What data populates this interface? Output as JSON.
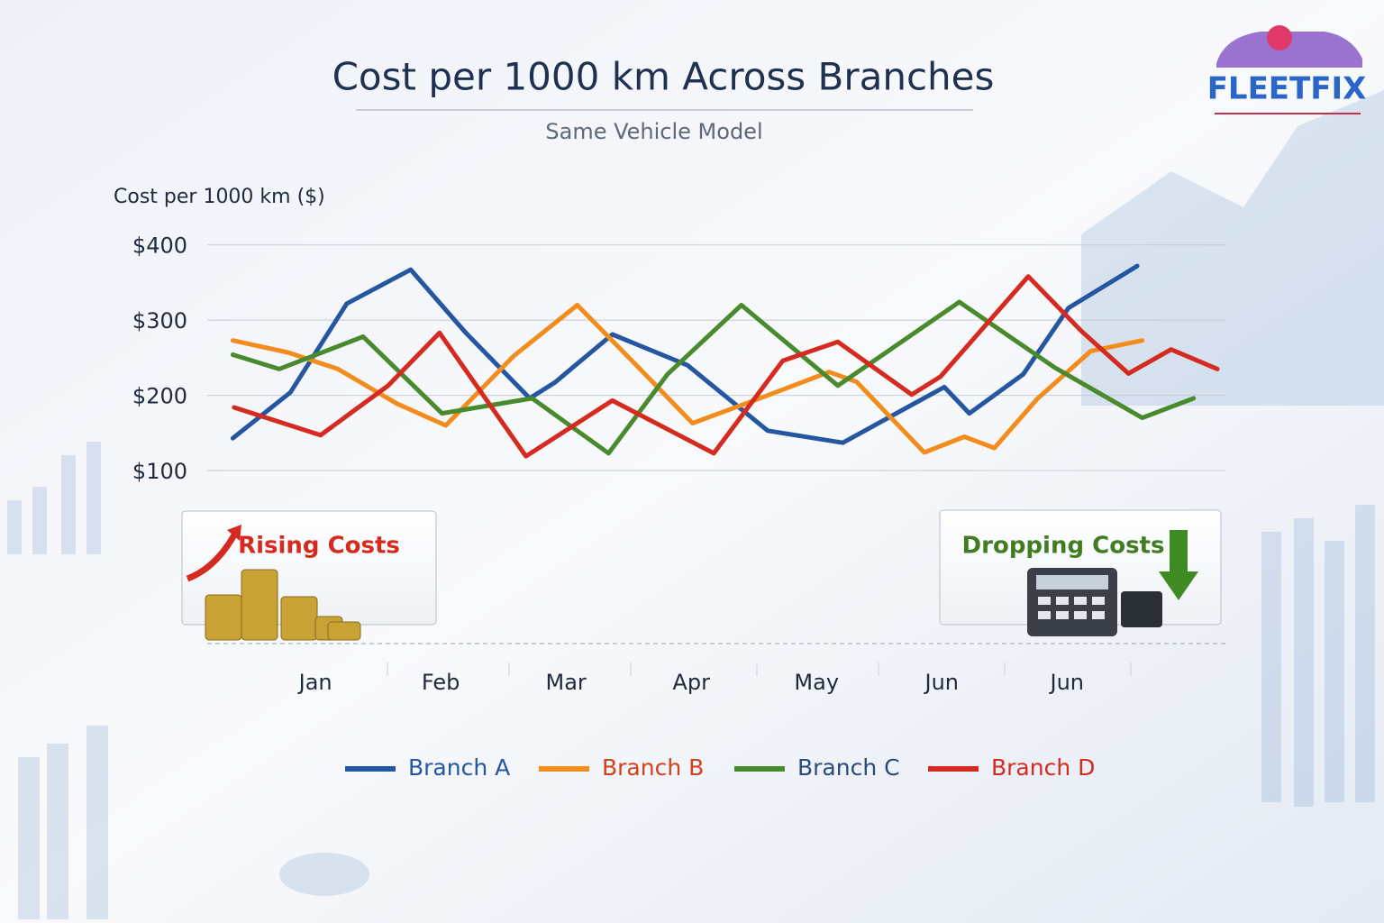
{
  "chart_data": {
    "type": "line",
    "title": "Cost per 1000 km Across Branches",
    "subtitle": "Same Vehicle Model",
    "y_label": "Cost per 1000 km ($)",
    "brand": "FLEETFIX",
    "annotations": [
      "Rising Costs",
      "Dropping Costs"
    ],
    "xlim": [
      -0.9,
      7.3
    ],
    "xticks": [
      {
        "value": 0,
        "label": "Jan"
      },
      {
        "value": 1,
        "label": "Feb"
      },
      {
        "value": 2,
        "label": "Mar"
      },
      {
        "value": 3,
        "label": "Apr"
      },
      {
        "value": 4,
        "label": "May"
      },
      {
        "value": 5,
        "label": "Jun"
      },
      {
        "value": 6,
        "label": "Jun"
      }
    ],
    "ylim": [
      -130,
      420
    ],
    "yticks": [
      {
        "value": 100,
        "label": "$100"
      },
      {
        "value": 200,
        "label": "$200"
      },
      {
        "value": 300,
        "label": "$300"
      },
      {
        "value": 400,
        "label": "$400"
      }
    ],
    "grid": true,
    "series": [
      {
        "name": "Branch A",
        "color": "#2457a0",
        "x": [
          -0.66,
          -0.2,
          0.25,
          0.76,
          1.2,
          1.71,
          1.91,
          2.37,
          2.97,
          3.61,
          4.21,
          5.02,
          5.22,
          5.65,
          6.01,
          6.56
        ],
        "values": [
          143,
          204,
          322,
          367,
          283,
          196,
          217,
          281,
          240,
          153,
          137,
          211,
          176,
          228,
          316,
          372
        ]
      },
      {
        "name": "Branch B",
        "color": "#f28c1c",
        "x": [
          -0.66,
          -0.22,
          0.18,
          0.65,
          1.04,
          1.58,
          2.09,
          2.55,
          3.01,
          3.53,
          4.1,
          4.32,
          4.86,
          5.18,
          5.42,
          5.76,
          6.19,
          6.6
        ],
        "values": [
          273,
          257,
          235,
          189,
          160,
          252,
          320,
          242,
          163,
          195,
          231,
          218,
          124,
          145,
          130,
          195,
          259,
          273
        ]
      },
      {
        "name": "Branch C",
        "color": "#4a8a2e",
        "x": [
          -0.66,
          -0.29,
          0.38,
          1.01,
          1.73,
          2.34,
          2.81,
          3.4,
          4.17,
          5.14,
          5.9,
          6.6,
          7.01
        ],
        "values": [
          254,
          235,
          278,
          176,
          196,
          123,
          228,
          320,
          213,
          324,
          237,
          170,
          196
        ]
      },
      {
        "name": "Branch D",
        "color": "#d42a20",
        "x": [
          -0.65,
          0.04,
          0.58,
          0.99,
          1.68,
          2.37,
          3.18,
          3.73,
          4.17,
          4.76,
          4.99,
          5.69,
          6.11,
          6.49,
          6.83,
          7.2
        ],
        "values": [
          184,
          147,
          213,
          283,
          119,
          193,
          123,
          246,
          271,
          201,
          225,
          358,
          286,
          229,
          261,
          235
        ]
      }
    ]
  }
}
